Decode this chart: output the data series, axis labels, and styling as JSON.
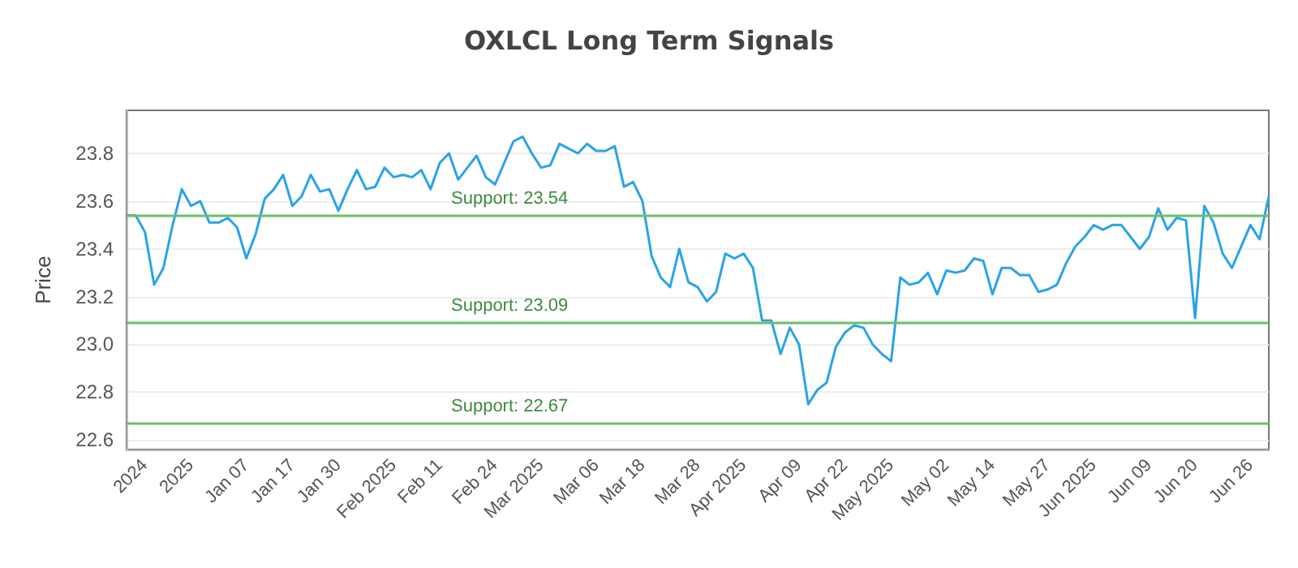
{
  "chart_data": {
    "type": "line",
    "title": "OXLCL Long Term Signals",
    "ylabel": "Price",
    "categories": [
      null,
      null,
      "2024",
      null,
      null,
      null,
      null,
      "2025",
      null,
      null,
      null,
      null,
      null,
      "Jan 07",
      null,
      null,
      null,
      null,
      "Jan 17",
      null,
      null,
      null,
      null,
      "Jan 30",
      null,
      null,
      null,
      null,
      null,
      "Feb 2025",
      null,
      null,
      null,
      null,
      "Feb 11",
      null,
      null,
      null,
      null,
      null,
      "Feb 24",
      null,
      null,
      null,
      null,
      "Mar 2025",
      null,
      null,
      null,
      null,
      null,
      "Mar 06",
      null,
      null,
      null,
      null,
      "Mar 18",
      null,
      null,
      null,
      null,
      null,
      "Mar 28",
      null,
      null,
      null,
      null,
      "Apr 2025",
      null,
      null,
      null,
      null,
      null,
      "Apr 09",
      null,
      null,
      null,
      null,
      "Apr 22",
      null,
      null,
      null,
      null,
      "May 2025",
      null,
      null,
      null,
      null,
      null,
      "May 02",
      null,
      null,
      null,
      null,
      "May 14",
      null,
      null,
      null,
      null,
      null,
      "May 27",
      null,
      null,
      null,
      null,
      "Jun 2025",
      null,
      null,
      null,
      null,
      null,
      "Jun 09",
      null,
      null,
      null,
      null,
      "Jun 20",
      null,
      null,
      null,
      null,
      null,
      "Jun 26",
      null,
      null
    ],
    "series": [
      {
        "color": "#29a3e8",
        "values": [
          23.54,
          23.54,
          23.47,
          23.25,
          23.32,
          23.5,
          23.65,
          23.58,
          23.6,
          23.51,
          23.51,
          23.53,
          23.49,
          23.36,
          23.46,
          23.61,
          23.65,
          23.71,
          23.58,
          23.62,
          23.71,
          23.64,
          23.65,
          23.56,
          23.65,
          23.73,
          23.65,
          23.66,
          23.74,
          23.7,
          23.71,
          23.7,
          23.73,
          23.65,
          23.76,
          23.8,
          23.69,
          23.74,
          23.79,
          23.7,
          23.67,
          23.76,
          23.85,
          23.87,
          23.8,
          23.74,
          23.75,
          23.84,
          23.82,
          23.8,
          23.84,
          23.81,
          23.81,
          23.83,
          23.66,
          23.68,
          23.6,
          23.37,
          23.28,
          23.24,
          23.4,
          23.26,
          23.24,
          23.18,
          23.22,
          23.38,
          23.36,
          23.38,
          23.32,
          23.1,
          23.1,
          22.96,
          23.07,
          23.0,
          22.75,
          22.81,
          22.84,
          22.99,
          23.05,
          23.08,
          23.07,
          23.0,
          22.96,
          22.93,
          23.28,
          23.25,
          23.26,
          23.3,
          23.21,
          23.31,
          23.3,
          23.31,
          23.36,
          23.35,
          23.21,
          23.32,
          23.32,
          23.29,
          23.29,
          23.22,
          23.23,
          23.25,
          23.34,
          23.41,
          23.45,
          23.5,
          23.48,
          23.5,
          23.5,
          23.45,
          23.4,
          23.45,
          23.57,
          23.48,
          23.53,
          23.52,
          23.11,
          23.58,
          23.51,
          23.38,
          23.32,
          23.41,
          23.5,
          23.44,
          23.62
        ]
      }
    ],
    "ylim": [
      22.56,
      23.98
    ],
    "yticks": [
      {
        "value": 22.6,
        "label": "22.6"
      },
      {
        "value": 22.8,
        "label": "22.8"
      },
      {
        "value": 23,
        "label": "23.0"
      },
      {
        "value": 23.2,
        "label": "23.2"
      },
      {
        "value": 23.4,
        "label": "23.4"
      },
      {
        "value": 23.6,
        "label": "23.6"
      },
      {
        "value": 23.8,
        "label": "23.8"
      }
    ],
    "ref_lines": [
      {
        "axis": "y",
        "value": 23.54,
        "label": "Support: 23.54",
        "color": "#6abf69"
      },
      {
        "axis": "y",
        "value": 23.09,
        "label": "Support: 23.09",
        "color": "#6abf69"
      },
      {
        "axis": "y",
        "value": 22.67,
        "label": "Support: 22.67",
        "color": "#6abf69"
      }
    ],
    "grid": "y",
    "marker": "none",
    "line_style": "solid"
  }
}
